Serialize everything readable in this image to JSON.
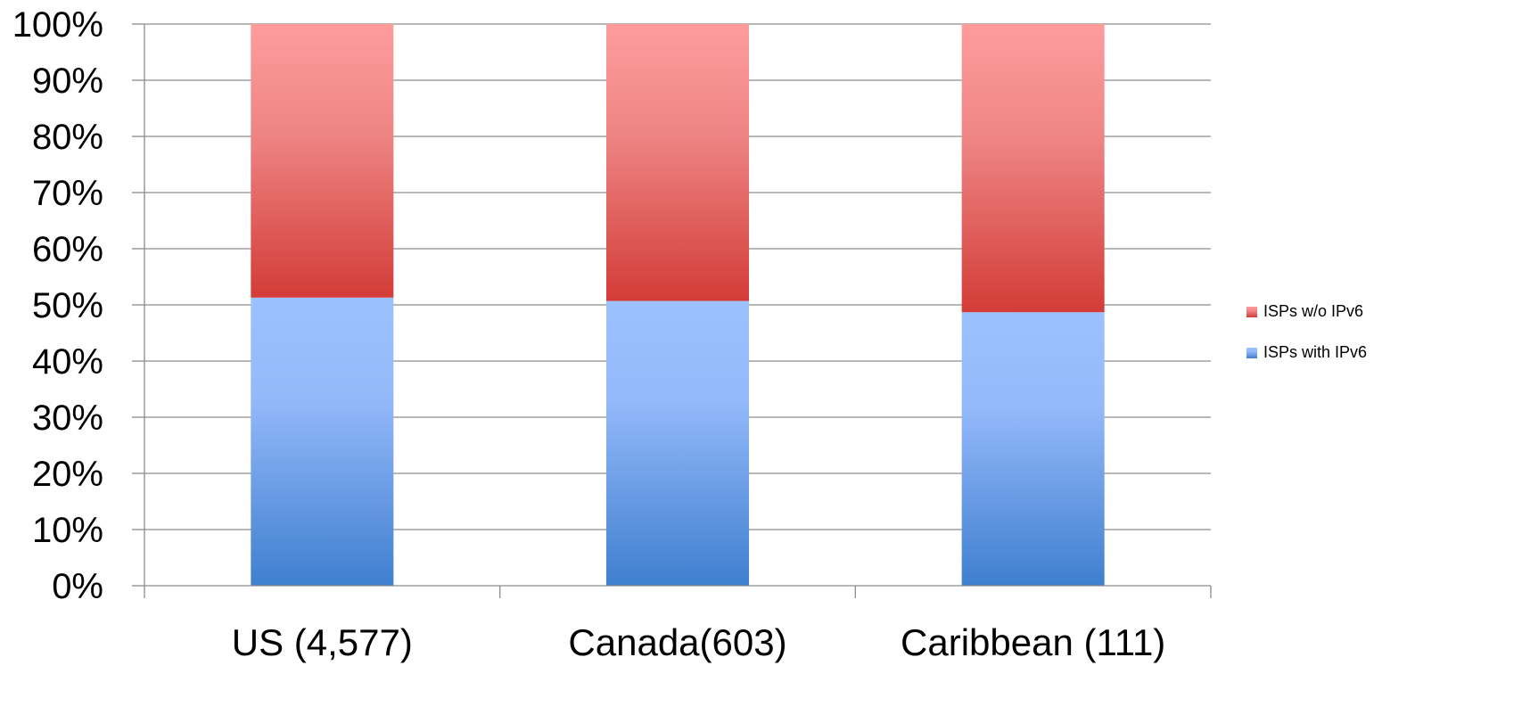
{
  "chart_data": {
    "type": "bar",
    "stacked": true,
    "percent": true,
    "categories": [
      "US (4,577)",
      "Canada(603)",
      "Caribbean (111)"
    ],
    "series": [
      {
        "name": "ISPs with IPv6",
        "values": [
          51.3,
          50.7,
          48.7
        ],
        "color": "#4a86d8"
      },
      {
        "name": "ISPs w/o IPv6",
        "values": [
          48.7,
          49.3,
          51.3
        ],
        "color": "#d9423f"
      }
    ],
    "yticks": [
      "0%",
      "10%",
      "20%",
      "30%",
      "40%",
      "50%",
      "60%",
      "70%",
      "80%",
      "90%",
      "100%"
    ],
    "ylim": [
      0,
      100
    ],
    "grid": true,
    "legend": "right",
    "legend_order": [
      "ISPs w/o IPv6",
      "ISPs with IPv6"
    ]
  }
}
